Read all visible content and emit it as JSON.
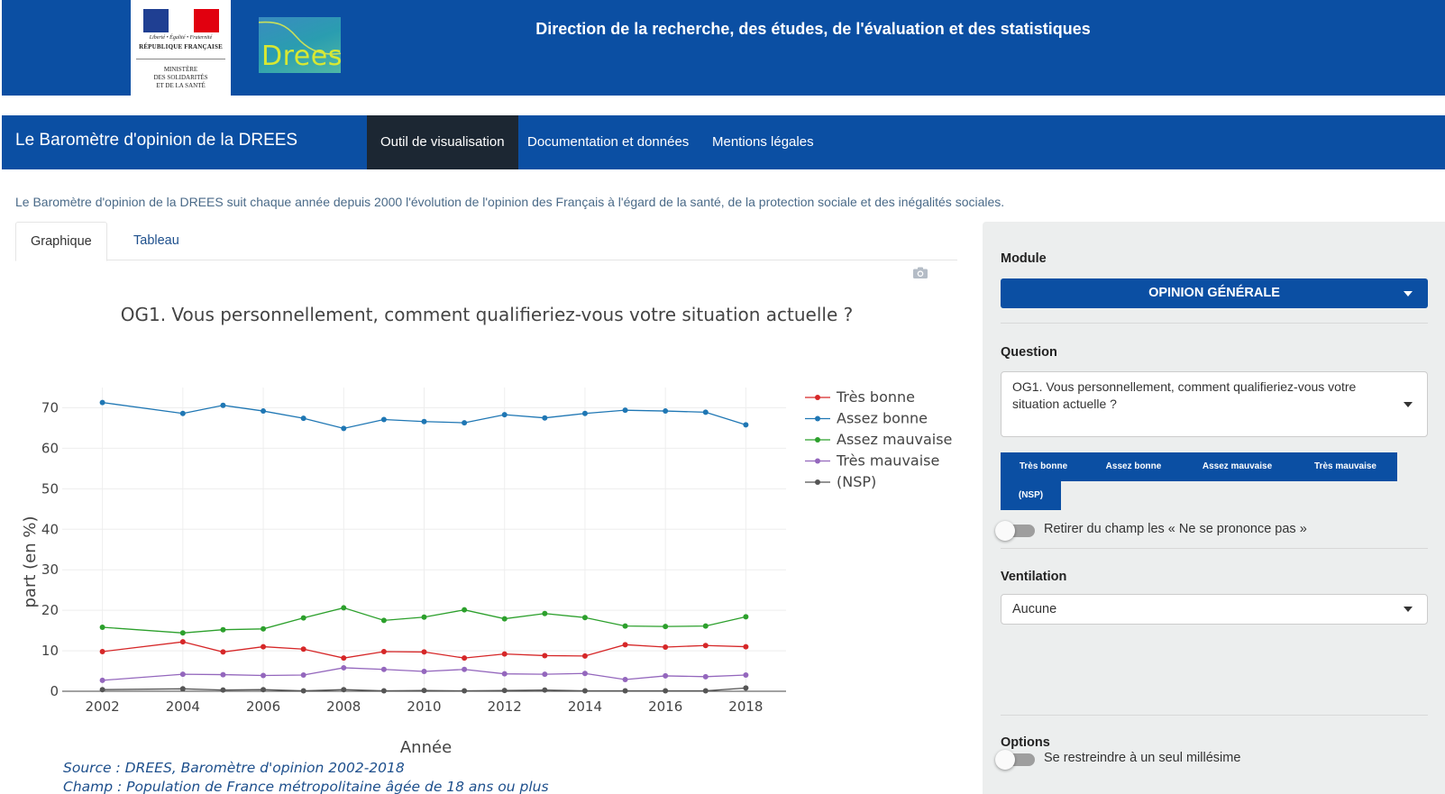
{
  "header": {
    "title": "Direction de la recherche, des études, de l'évaluation et des statistiques",
    "marianne": {
      "motto": "Liberté • Égalité • Fraternité",
      "republic": "RÉPUBLIQUE FRANÇAISE",
      "ministry": "MINISTÈRE\nDES SOLIDARITÉS\nET DE LA SANTÉ"
    },
    "drees_logo": "Drees"
  },
  "navbar": {
    "brand": "Le Baromètre d'opinion de la DREES",
    "items": [
      {
        "label": "Outil de visualisation",
        "active": true
      },
      {
        "label": "Documentation et données",
        "active": false
      },
      {
        "label": "Mentions légales",
        "active": false
      }
    ]
  },
  "intro": "Le Baromètre d'opinion de la DREES suit chaque année depuis 2000 l'évolution de l'opinion des Français à l'égard de la santé, de la protection sociale et des inégalités sociales.",
  "tabs": [
    {
      "label": "Graphique",
      "active": true
    },
    {
      "label": "Tableau",
      "active": false
    }
  ],
  "chart_data": {
    "type": "line",
    "title": "OG1. Vous personnellement, comment qualifieriez-vous votre situation actuelle ?",
    "xlabel": "Année",
    "ylabel": "part (en %)",
    "xlim": [
      2001,
      2019
    ],
    "ylim": [
      0,
      75
    ],
    "xticks": [
      2002,
      2004,
      2006,
      2008,
      2010,
      2012,
      2014,
      2016,
      2018
    ],
    "yticks": [
      0,
      10,
      20,
      30,
      40,
      50,
      60,
      70
    ],
    "grid": true,
    "legend_position": "right",
    "x": [
      2002,
      2004,
      2005,
      2006,
      2007,
      2008,
      2009,
      2010,
      2011,
      2012,
      2013,
      2014,
      2015,
      2016,
      2017,
      2018
    ],
    "series": [
      {
        "name": "Très bonne",
        "color": "#d62728",
        "values": [
          9.8,
          12.2,
          9.7,
          11.0,
          10.4,
          8.2,
          9.8,
          9.7,
          8.2,
          9.2,
          8.8,
          8.7,
          11.5,
          10.9,
          11.3,
          11.0
        ]
      },
      {
        "name": "Assez bonne",
        "color": "#1f77b4",
        "values": [
          71.3,
          68.6,
          70.6,
          69.2,
          67.4,
          64.9,
          67.1,
          66.6,
          66.3,
          68.3,
          67.5,
          68.6,
          69.4,
          69.2,
          68.9,
          65.8
        ]
      },
      {
        "name": "Assez mauvaise",
        "color": "#2ca02c",
        "values": [
          15.8,
          14.4,
          15.2,
          15.4,
          18.1,
          20.6,
          17.5,
          18.3,
          20.1,
          17.9,
          19.2,
          18.2,
          16.1,
          16.0,
          16.1,
          18.4
        ]
      },
      {
        "name": "Très mauvaise",
        "color": "#9467bd",
        "values": [
          2.7,
          4.2,
          4.1,
          3.9,
          4.0,
          5.8,
          5.4,
          4.9,
          5.4,
          4.3,
          4.2,
          4.4,
          2.9,
          3.8,
          3.6,
          4.0
        ]
      },
      {
        "name": "(NSP)",
        "color": "#555555",
        "values": [
          0.4,
          0.6,
          0.3,
          0.4,
          0.1,
          0.4,
          0.1,
          0.2,
          0.1,
          0.2,
          0.3,
          0.1,
          0.1,
          0.1,
          0.1,
          0.8
        ]
      }
    ]
  },
  "source": {
    "line1": "Source : DREES, Baromètre d'opinion 2002-2018",
    "line2": "Champ : Population de France métropolitaine âgée de 18 ans ou plus"
  },
  "sidebar": {
    "module_label": "Module",
    "module_value": "OPINION GÉNÉRALE",
    "question_label": "Question",
    "question_value": "OG1. Vous personnellement, comment qualifieriez-vous votre situation actuelle ?",
    "answers": [
      "Très bonne",
      "Assez bonne",
      "Assez mauvaise",
      "Très mauvaise",
      "(NSP)"
    ],
    "nsp_toggle_label": "Retirer du champ les « Ne se prononce pas »",
    "ventilation_label": "Ventilation",
    "ventilation_value": "Aucune",
    "options_label": "Options",
    "millesime_toggle_label": "Se restreindre à un seul millésime"
  },
  "colors": {
    "brand_blue": "#0b4fa3",
    "nav_active": "#1c2733",
    "sidebar_bg": "#eceeee"
  }
}
